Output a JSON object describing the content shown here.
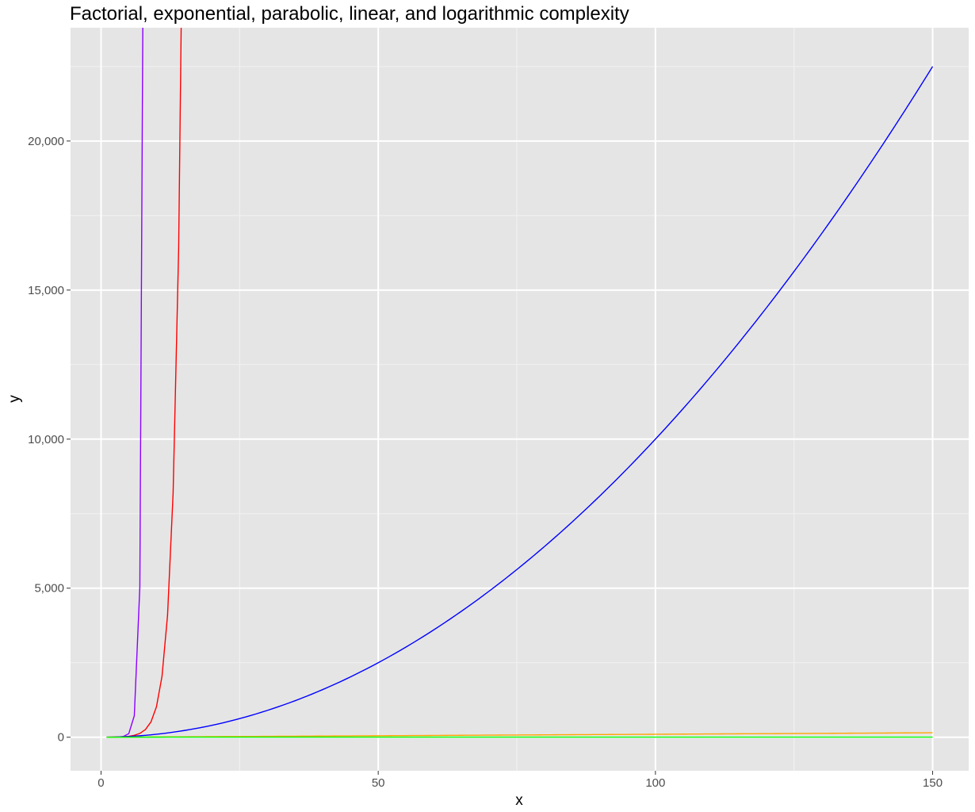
{
  "chart_data": {
    "type": "line",
    "title": "Factorial, exponential, parabolic, linear, and logarithmic complexity",
    "xlabel": "x",
    "ylabel": "y",
    "xlim": [
      -5.5,
      156.5
    ],
    "ylim": [
      -1125,
      23800
    ],
    "x_ticks": [
      0,
      50,
      100,
      150
    ],
    "x_tick_labels": [
      "0",
      "50",
      "100",
      "150"
    ],
    "y_ticks": [
      0,
      5000,
      10000,
      15000,
      20000
    ],
    "y_tick_labels": [
      "0",
      "5,000",
      "10,000",
      "15,000",
      "20,000"
    ],
    "grid": true,
    "legend": "none",
    "series": [
      {
        "color": "#8B00FF",
        "formula": "factorial(x)",
        "x_range": [
          1,
          150
        ],
        "step": 1
      },
      {
        "color": "#FF0000",
        "formula": "2^x",
        "x_range": [
          1,
          150
        ],
        "step": 1
      },
      {
        "color": "#0000FF",
        "formula": "x^2",
        "x_range": [
          1,
          150
        ],
        "step": 1
      },
      {
        "color": "#FFA500",
        "formula": "x",
        "x_range": [
          1,
          150
        ],
        "step": 1
      },
      {
        "color": "#00FF00",
        "formula": "log(x)",
        "x_range": [
          1,
          150
        ],
        "step": 1
      }
    ]
  }
}
